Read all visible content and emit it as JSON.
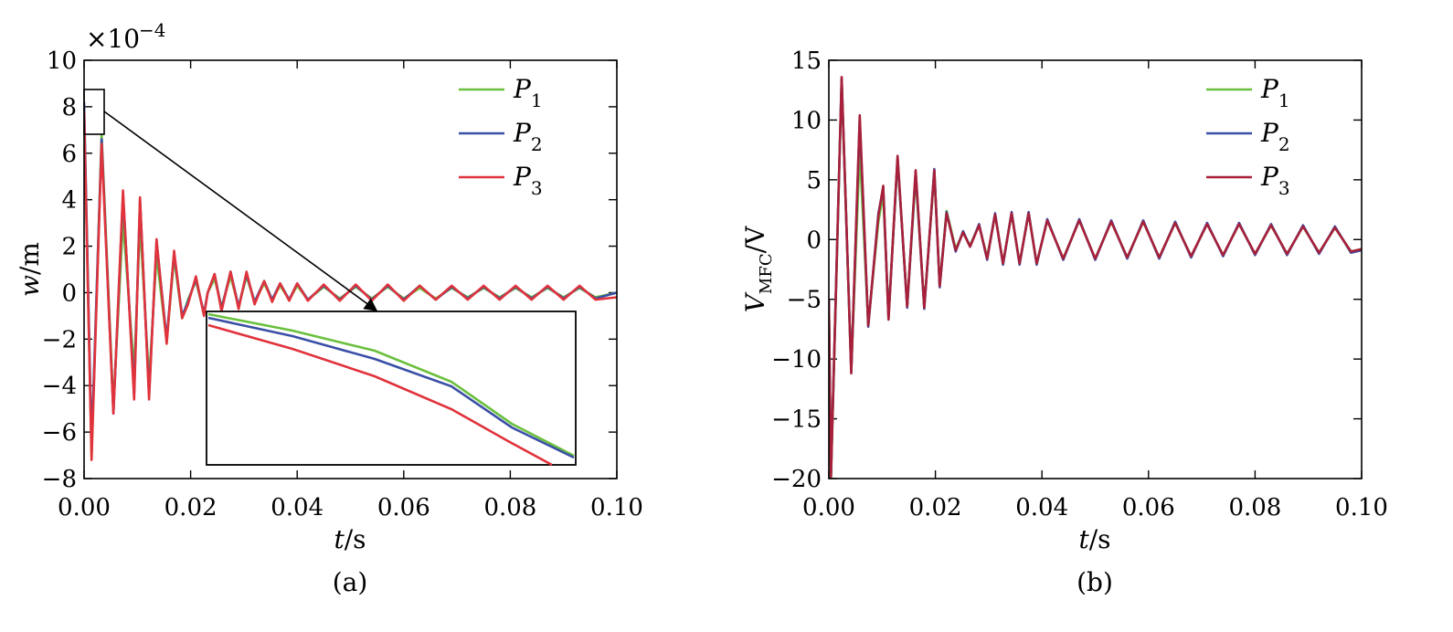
{
  "figure": {
    "caption_a": "(a)",
    "caption_b": "(b)"
  },
  "chart_data": [
    {
      "type": "line",
      "panel": "(a)",
      "title": "",
      "xlabel": "t/s",
      "ylabel": "w/m",
      "yscale_label": "×10^-4",
      "xlim": [
        0,
        0.1
      ],
      "ylim": [
        -8,
        10
      ],
      "xticks": [
        "0.00",
        "0.02",
        "0.04",
        "0.06",
        "0.08",
        "0.10"
      ],
      "yticks": [
        "−8",
        "−6",
        "−4",
        "−2",
        "0",
        "2",
        "4",
        "6",
        "8",
        "10"
      ],
      "legend_position": "top-right",
      "series": [
        {
          "name": "P1",
          "color": "#6abf3d",
          "x": [
            0.0,
            0.0014,
            0.0033,
            0.0055,
            0.0073,
            0.0094,
            0.0105,
            0.0122,
            0.0136,
            0.0155,
            0.0169,
            0.0184,
            0.0195,
            0.021,
            0.0225,
            0.0232,
            0.0245,
            0.0258,
            0.0275,
            0.029,
            0.0305,
            0.032,
            0.0338,
            0.0353,
            0.0368,
            0.0385,
            0.04,
            0.042,
            0.045,
            0.048,
            0.051,
            0.054,
            0.057,
            0.06,
            0.063,
            0.066,
            0.069,
            0.072,
            0.075,
            0.078,
            0.081,
            0.084,
            0.087,
            0.09,
            0.093,
            0.096,
            0.1
          ],
          "values": [
            8.0,
            -7.0,
            6.8,
            -4.9,
            3.1,
            -3.4,
            3.0,
            -3.8,
            1.6,
            -2.1,
            1.5,
            -1.1,
            -0.3,
            0.5,
            -0.9,
            0.0,
            0.6,
            -0.6,
            0.7,
            -0.6,
            0.7,
            -0.4,
            0.4,
            -0.3,
            0.3,
            -0.3,
            0.3,
            -0.3,
            0.25,
            -0.25,
            0.25,
            -0.25,
            0.25,
            -0.25,
            0.2,
            -0.25,
            0.2,
            -0.2,
            0.2,
            -0.2,
            0.2,
            -0.2,
            0.2,
            -0.2,
            0.2,
            -0.2,
            0.0
          ]
        },
        {
          "name": "P2",
          "color": "#3a4fa6",
          "x": [
            0.0,
            0.0014,
            0.0033,
            0.0055,
            0.0073,
            0.0094,
            0.0105,
            0.0122,
            0.0136,
            0.0155,
            0.0169,
            0.0184,
            0.0195,
            0.021,
            0.0225,
            0.0232,
            0.0245,
            0.0258,
            0.0275,
            0.029,
            0.0305,
            0.032,
            0.0338,
            0.0353,
            0.0368,
            0.0385,
            0.04,
            0.042,
            0.045,
            0.048,
            0.051,
            0.054,
            0.057,
            0.06,
            0.063,
            0.066,
            0.069,
            0.072,
            0.075,
            0.078,
            0.081,
            0.084,
            0.087,
            0.09,
            0.093,
            0.096,
            0.1
          ],
          "values": [
            8.2,
            -6.6,
            6.6,
            -5.2,
            4.2,
            -4.3,
            4.0,
            -4.4,
            2.2,
            -2.0,
            1.7,
            -1.0,
            -0.4,
            0.6,
            -0.9,
            0.0,
            0.8,
            -0.7,
            0.9,
            -0.6,
            0.8,
            -0.4,
            0.5,
            -0.3,
            0.4,
            -0.3,
            0.4,
            -0.3,
            0.3,
            -0.3,
            0.3,
            -0.3,
            0.3,
            -0.3,
            0.3,
            -0.3,
            0.25,
            -0.25,
            0.25,
            -0.25,
            0.25,
            -0.25,
            0.25,
            -0.25,
            0.25,
            -0.25,
            0.0
          ]
        },
        {
          "name": "P3",
          "color": "#e0333c",
          "x": [
            0.0,
            0.0014,
            0.0033,
            0.0055,
            0.0073,
            0.0094,
            0.0105,
            0.0122,
            0.0136,
            0.0155,
            0.0169,
            0.0184,
            0.0195,
            0.021,
            0.0225,
            0.0232,
            0.0245,
            0.0258,
            0.0275,
            0.029,
            0.0305,
            0.032,
            0.0338,
            0.0353,
            0.0368,
            0.0385,
            0.04,
            0.042,
            0.045,
            0.048,
            0.051,
            0.054,
            0.057,
            0.06,
            0.063,
            0.066,
            0.069,
            0.072,
            0.075,
            0.078,
            0.081,
            0.084,
            0.087,
            0.09,
            0.093,
            0.096,
            0.1
          ],
          "values": [
            7.8,
            -7.2,
            6.4,
            -5.2,
            4.4,
            -4.6,
            4.1,
            -4.6,
            2.3,
            -2.2,
            1.8,
            -1.1,
            -0.5,
            0.7,
            -1.0,
            0.0,
            0.8,
            -0.8,
            0.9,
            -0.7,
            0.9,
            -0.5,
            0.5,
            -0.4,
            0.4,
            -0.35,
            0.4,
            -0.35,
            0.35,
            -0.35,
            0.35,
            -0.35,
            0.35,
            -0.35,
            0.3,
            -0.3,
            0.3,
            -0.3,
            0.3,
            -0.3,
            0.3,
            -0.3,
            0.3,
            -0.3,
            0.3,
            -0.3,
            -0.2
          ]
        }
      ]
    },
    {
      "type": "line",
      "panel": "(b)",
      "title": "",
      "xlabel": "t/s",
      "ylabel": "V_MFC/V",
      "xlim": [
        0,
        0.1
      ],
      "ylim": [
        -20,
        15
      ],
      "xticks": [
        "0.00",
        "0.02",
        "0.04",
        "0.06",
        "0.08",
        "0.10"
      ],
      "yticks": [
        "−20",
        "−15",
        "−10",
        "−5",
        "0",
        "5",
        "10",
        "15"
      ],
      "legend_position": "top-right",
      "series": [
        {
          "name": "P1",
          "color": "#6abf3d",
          "x": [
            0.0,
            0.0004,
            0.0024,
            0.0042,
            0.0058,
            0.0074,
            0.0093,
            0.0102,
            0.0112,
            0.0129,
            0.0147,
            0.0163,
            0.0179,
            0.0198,
            0.0208,
            0.0221,
            0.0238,
            0.0252,
            0.0265,
            0.0282,
            0.0297,
            0.0312,
            0.0327,
            0.0343,
            0.0358,
            0.0375,
            0.039,
            0.041,
            0.044,
            0.047,
            0.05,
            0.053,
            0.056,
            0.059,
            0.062,
            0.065,
            0.068,
            0.071,
            0.074,
            0.077,
            0.08,
            0.083,
            0.086,
            0.089,
            0.092,
            0.095,
            0.098,
            0.1
          ],
          "values": [
            -5.0,
            -20.0,
            13.2,
            -10.9,
            7.5,
            -7.1,
            1.5,
            3.8,
            -6.3,
            6.6,
            -5.5,
            5.2,
            -5.6,
            5.6,
            -3.8,
            2.4,
            -0.8,
            0.6,
            -0.5,
            1.2,
            -1.5,
            2.1,
            -2.0,
            2.2,
            -2.0,
            2.2,
            -2.0,
            1.6,
            -1.6,
            1.6,
            -1.6,
            1.5,
            -1.5,
            1.5,
            -1.5,
            1.4,
            -1.4,
            1.3,
            -1.3,
            1.3,
            -1.2,
            1.2,
            -1.2,
            1.1,
            -1.1,
            1.0,
            -1.0,
            -0.8
          ]
        },
        {
          "name": "P2",
          "color": "#3a4fa6",
          "x": [
            0.0,
            0.0004,
            0.0024,
            0.0042,
            0.0058,
            0.0074,
            0.0093,
            0.0102,
            0.0112,
            0.0129,
            0.0147,
            0.0163,
            0.0179,
            0.0198,
            0.0208,
            0.0221,
            0.0238,
            0.0252,
            0.0265,
            0.0282,
            0.0297,
            0.0312,
            0.0327,
            0.0343,
            0.0358,
            0.0375,
            0.039,
            0.041,
            0.044,
            0.047,
            0.05,
            0.053,
            0.056,
            0.059,
            0.062,
            0.065,
            0.068,
            0.071,
            0.074,
            0.077,
            0.08,
            0.083,
            0.086,
            0.089,
            0.092,
            0.095,
            0.098,
            0.1
          ],
          "values": [
            -5.0,
            -19.7,
            13.5,
            -11.1,
            10.0,
            -7.3,
            2.2,
            4.3,
            -6.6,
            6.8,
            -5.7,
            5.7,
            -5.8,
            5.9,
            -4.0,
            2.3,
            -1.0,
            0.7,
            -0.6,
            1.3,
            -1.7,
            2.2,
            -2.1,
            2.3,
            -2.1,
            2.3,
            -2.1,
            1.7,
            -1.7,
            1.7,
            -1.7,
            1.6,
            -1.6,
            1.6,
            -1.6,
            1.5,
            -1.5,
            1.4,
            -1.4,
            1.4,
            -1.3,
            1.3,
            -1.3,
            1.2,
            -1.2,
            1.1,
            -1.1,
            -0.9
          ]
        },
        {
          "name": "P3",
          "color": "#a8203a",
          "x": [
            0.0,
            0.0004,
            0.0024,
            0.0042,
            0.0058,
            0.0074,
            0.0093,
            0.0102,
            0.0112,
            0.0129,
            0.0147,
            0.0163,
            0.0179,
            0.0198,
            0.0208,
            0.0221,
            0.0238,
            0.0252,
            0.0265,
            0.0282,
            0.0297,
            0.0312,
            0.0327,
            0.0343,
            0.0358,
            0.0375,
            0.039,
            0.041,
            0.044,
            0.047,
            0.05,
            0.053,
            0.056,
            0.059,
            0.062,
            0.065,
            0.068,
            0.071,
            0.074,
            0.077,
            0.08,
            0.083,
            0.086,
            0.089,
            0.092,
            0.095,
            0.098,
            0.1
          ],
          "values": [
            -5.0,
            -19.9,
            13.6,
            -11.2,
            10.4,
            -7.2,
            2.0,
            4.5,
            -6.7,
            7.0,
            -5.6,
            5.8,
            -5.7,
            5.8,
            -3.9,
            2.2,
            -0.9,
            0.6,
            -0.6,
            1.2,
            -1.6,
            2.1,
            -2.0,
            2.2,
            -2.0,
            2.2,
            -2.0,
            1.6,
            -1.6,
            1.6,
            -1.6,
            1.5,
            -1.5,
            1.5,
            -1.5,
            1.4,
            -1.4,
            1.3,
            -1.3,
            1.3,
            -1.2,
            1.2,
            -1.2,
            1.1,
            -1.1,
            1.0,
            -1.0,
            -0.8
          ]
        }
      ]
    }
  ]
}
